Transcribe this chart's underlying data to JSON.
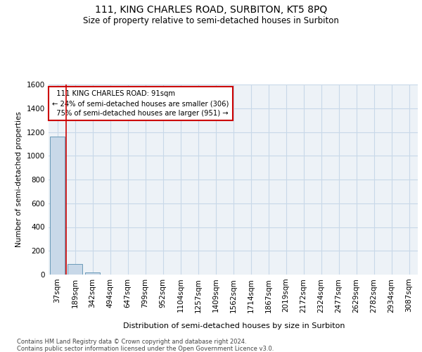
{
  "title_line1": "111, KING CHARLES ROAD, SURBITON, KT5 8PQ",
  "title_line2": "Size of property relative to semi-detached houses in Surbiton",
  "xlabel": "Distribution of semi-detached houses by size in Surbiton",
  "ylabel": "Number of semi-detached properties",
  "footnote": "Contains HM Land Registry data © Crown copyright and database right 2024.\nContains public sector information licensed under the Open Government Licence v3.0.",
  "categories": [
    "37sqm",
    "189sqm",
    "342sqm",
    "494sqm",
    "647sqm",
    "799sqm",
    "952sqm",
    "1104sqm",
    "1257sqm",
    "1409sqm",
    "1562sqm",
    "1714sqm",
    "1867sqm",
    "2019sqm",
    "2172sqm",
    "2324sqm",
    "2477sqm",
    "2629sqm",
    "2782sqm",
    "2934sqm",
    "3087sqm"
  ],
  "bar_values": [
    1160,
    90,
    20,
    2,
    1,
    0,
    0,
    0,
    0,
    0,
    0,
    0,
    0,
    0,
    0,
    0,
    0,
    0,
    0,
    0,
    0
  ],
  "bar_color": "#c8d8e8",
  "bar_edge_color": "#6a9ab8",
  "grid_color": "#c8d8e8",
  "ylim": [
    0,
    1600
  ],
  "yticks": [
    0,
    200,
    400,
    600,
    800,
    1000,
    1200,
    1400,
    1600
  ],
  "property_label": "111 KING CHARLES ROAD: 91sqm",
  "pct_smaller": 24,
  "pct_smaller_n": 306,
  "pct_larger": 75,
  "pct_larger_n": 951,
  "annotation_box_color": "#cc0000",
  "vline_color": "#cc0000",
  "bg_color": "#ffffff",
  "plot_bg_color": "#edf2f7"
}
